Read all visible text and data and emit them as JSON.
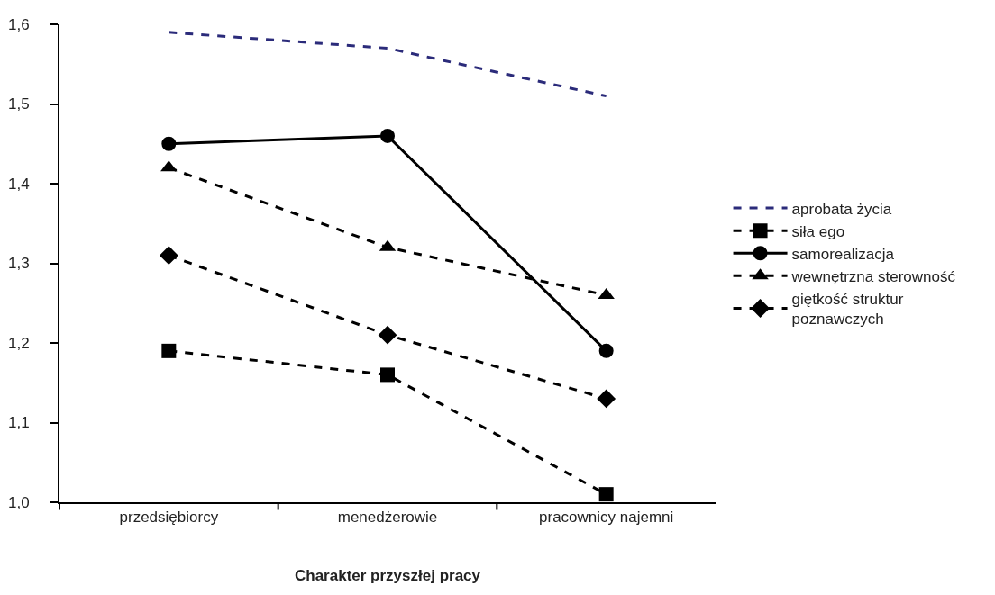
{
  "chart_data": {
    "type": "line",
    "xlabel": "Charakter przyszłej pracy",
    "categories": [
      "przedsiębiorcy",
      "menedżerowie",
      "pracownicy najemni"
    ],
    "series": [
      {
        "name": "aprobata życia",
        "color": "#2b2b7a",
        "values": [
          1.59,
          1.57,
          1.51
        ],
        "marker": "none",
        "line_style": "dashed"
      },
      {
        "name": "siła ego",
        "color": "#000000",
        "values": [
          1.19,
          1.16,
          1.01
        ],
        "marker": "square",
        "line_style": "dashed"
      },
      {
        "name": "samorealizacja",
        "color": "#000000",
        "values": [
          1.45,
          1.46,
          1.19
        ],
        "marker": "circle",
        "line_style": "solid"
      },
      {
        "name": "wewnętrzna sterowność",
        "color": "#000000",
        "values": [
          1.42,
          1.32,
          1.26
        ],
        "marker": "triangle",
        "line_style": "dashed"
      },
      {
        "name": "giętkość struktur poznawczych",
        "color": "#000000",
        "values": [
          1.31,
          1.21,
          1.13
        ],
        "marker": "diamond",
        "line_style": "dashed"
      }
    ],
    "ylim": [
      1.0,
      1.6
    ],
    "yticks": [
      {
        "value": 1.0,
        "label": "1,0"
      },
      {
        "value": 1.1,
        "label": "1,1"
      },
      {
        "value": 1.2,
        "label": "1,2"
      },
      {
        "value": 1.3,
        "label": "1,3"
      },
      {
        "value": 1.4,
        "label": "1,4"
      },
      {
        "value": 1.5,
        "label": "1,5"
      },
      {
        "value": 1.6,
        "label": "1,6"
      }
    ],
    "grid": false,
    "legend": "right"
  }
}
